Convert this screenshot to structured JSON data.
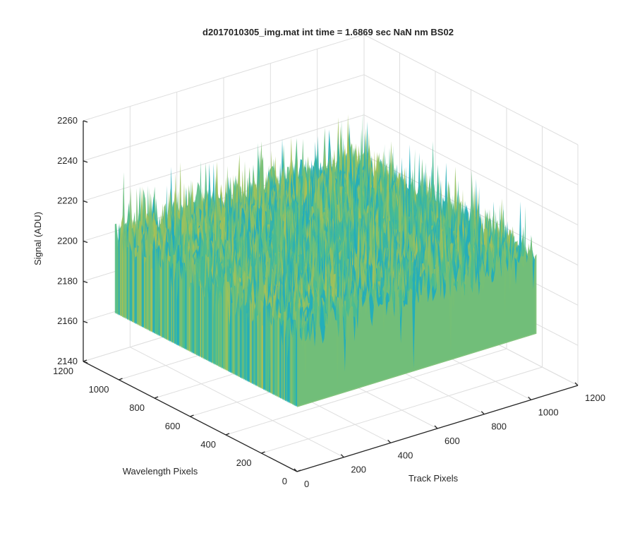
{
  "chart_data": {
    "type": "surface",
    "title": "d2017010305_img.mat int time = 1.6869 sec  NaN nm BS02",
    "xlabel": "Track Pixels",
    "ylabel": "Wavelength Pixels",
    "zlabel": "Signal (ADU)",
    "xlim": [
      0,
      1200
    ],
    "ylim": [
      0,
      1200
    ],
    "zlim": [
      2140,
      2260
    ],
    "xticks": [
      "0",
      "200",
      "400",
      "600",
      "800",
      "1000",
      "1200"
    ],
    "yticks": [
      "0",
      "200",
      "400",
      "600",
      "800",
      "1000",
      "1200"
    ],
    "zticks": [
      "2140",
      "2160",
      "2180",
      "2200",
      "2220",
      "2240",
      "2260"
    ],
    "x_extent": [
      1,
      1024
    ],
    "y_extent": [
      1,
      1024
    ],
    "z_typical_range": [
      2180,
      2240
    ],
    "z_min_spikes": 2160,
    "z_max_spikes": 2248,
    "z_mean": 2210,
    "colormap": "parula",
    "grid": true,
    "view": "3d"
  },
  "colors": {
    "low": "#1f7fcf",
    "mid_low": "#18a9c7",
    "mid": "#4cbd8f",
    "mid_high": "#9fc15a",
    "high": "#e2be38",
    "axis": "#262626",
    "grid": "#dedede"
  }
}
